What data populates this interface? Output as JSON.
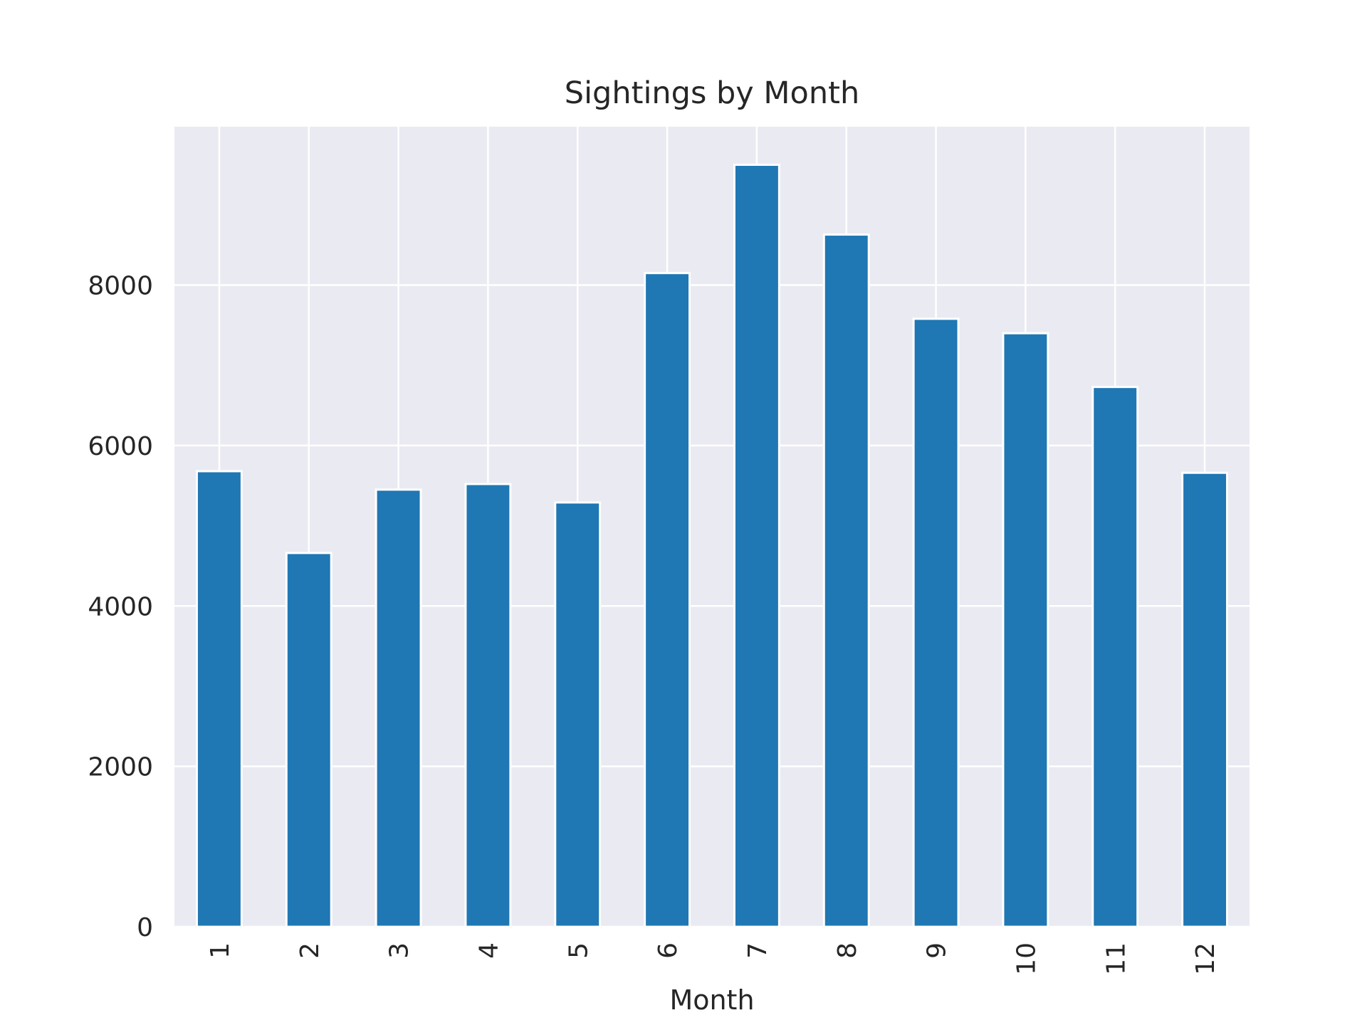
{
  "chart_data": {
    "type": "bar",
    "title": "Sightings by Month",
    "xlabel": "Month",
    "ylabel": "",
    "categories": [
      "1",
      "2",
      "3",
      "4",
      "5",
      "6",
      "7",
      "8",
      "9",
      "10",
      "11",
      "12"
    ],
    "values": [
      5680,
      4660,
      5450,
      5520,
      5290,
      8150,
      9500,
      8630,
      7580,
      7400,
      6730,
      5660
    ],
    "ylim": [
      0,
      9975
    ],
    "yticks": [
      0,
      2000,
      4000,
      6000,
      8000
    ],
    "ytick_labels": [
      "0",
      "2000",
      "4000",
      "6000",
      "8000"
    ],
    "x_tick_rotation": "vertical",
    "grid": true,
    "legend": "none",
    "colors": {
      "bar": "#1f77b4",
      "plot_background": "#eaeaf2",
      "grid": "#ffffff",
      "text": "#262626"
    }
  }
}
